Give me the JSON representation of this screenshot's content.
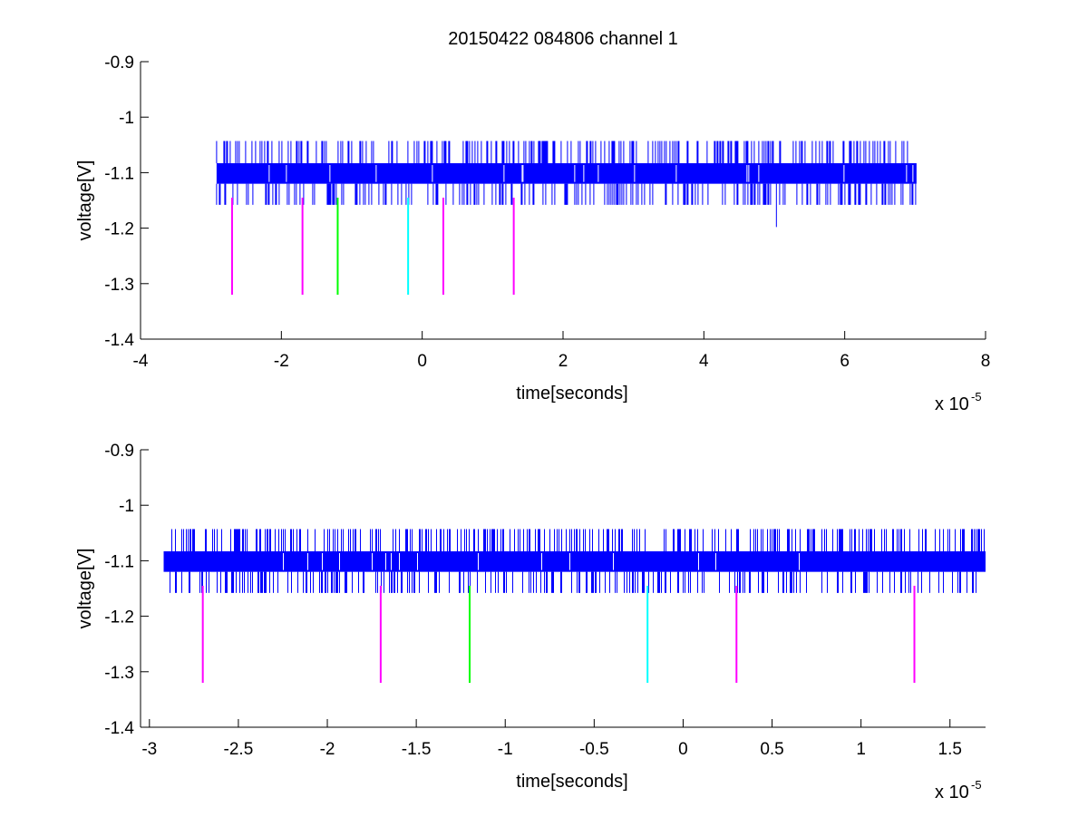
{
  "figure": {
    "title": "20150422 084806 channel 1"
  },
  "colors": {
    "trace": "#0000ff",
    "axis": "#000000",
    "marker_magenta": "#ff00ff",
    "marker_green": "#00ff00",
    "marker_cyan": "#00ffff"
  },
  "chart_data": [
    {
      "type": "line",
      "title": "20150422 084806 channel 1",
      "xlabel": "time[seconds]",
      "ylabel": "voltage[V]",
      "x_exponent_label": "x 10",
      "x_exponent": "-5",
      "xlim": [
        -4,
        8
      ],
      "ylim": [
        -1.4,
        -0.9
      ],
      "xticks": [
        -4,
        -2,
        0,
        2,
        4,
        6,
        8
      ],
      "xtick_labels": [
        "-4",
        "-2",
        "0",
        "2",
        "4",
        "6",
        "8"
      ],
      "yticks": [
        -1.4,
        -1.3,
        -1.2,
        -1.1,
        -1,
        -0.9
      ],
      "ytick_labels": [
        "-1.4",
        "-1.3",
        "-1.2",
        "-1.1",
        "-1",
        "-0.9"
      ],
      "grid": false,
      "series": [
        {
          "kind": "noisy-trace",
          "color": "#0000ff",
          "x_range": [
            -2.92,
            7.02
          ],
          "band": [
            -1.12,
            -1.083
          ],
          "spike_high": -1.043,
          "spike_low": -1.158,
          "outliers": [
            {
              "x": 5.03,
              "y": -1.198
            }
          ]
        }
      ],
      "markers": [
        {
          "x": -2.7,
          "y_top": -1.145,
          "y_bottom": -1.32,
          "color": "#ff00ff"
        },
        {
          "x": -1.7,
          "y_top": -1.145,
          "y_bottom": -1.32,
          "color": "#ff00ff"
        },
        {
          "x": -1.2,
          "y_top": -1.145,
          "y_bottom": -1.32,
          "color": "#00ff00"
        },
        {
          "x": -0.2,
          "y_top": -1.145,
          "y_bottom": -1.32,
          "color": "#00ffff"
        },
        {
          "x": 0.3,
          "y_top": -1.145,
          "y_bottom": -1.32,
          "color": "#ff00ff"
        },
        {
          "x": 1.3,
          "y_top": -1.145,
          "y_bottom": -1.32,
          "color": "#ff00ff"
        }
      ]
    },
    {
      "type": "line",
      "title": "",
      "xlabel": "time[seconds]",
      "ylabel": "voltage[V]",
      "x_exponent_label": "x 10",
      "x_exponent": "-5",
      "xlim": [
        -3.05,
        1.7
      ],
      "ylim": [
        -1.4,
        -0.9
      ],
      "xticks": [
        -3,
        -2.5,
        -2,
        -1.5,
        -1,
        -0.5,
        0,
        0.5,
        1,
        1.5
      ],
      "xtick_labels": [
        "-3",
        "-2.5",
        "-2",
        "-1.5",
        "-1",
        "-0.5",
        "0",
        "0.5",
        "1",
        "1.5"
      ],
      "yticks": [
        -1.4,
        -1.3,
        -1.2,
        -1.1,
        -1,
        -0.9
      ],
      "ytick_labels": [
        "-1.4",
        "-1.3",
        "-1.2",
        "-1.1",
        "-1",
        "-0.9"
      ],
      "grid": false,
      "series": [
        {
          "kind": "noisy-trace",
          "color": "#0000ff",
          "x_range": [
            -2.92,
            1.7
          ],
          "band": [
            -1.12,
            -1.083
          ],
          "spike_high": -1.043,
          "spike_low": -1.158,
          "outliers": []
        }
      ],
      "markers": [
        {
          "x": -2.7,
          "y_top": -1.145,
          "y_bottom": -1.32,
          "color": "#ff00ff"
        },
        {
          "x": -1.7,
          "y_top": -1.145,
          "y_bottom": -1.32,
          "color": "#ff00ff"
        },
        {
          "x": -1.2,
          "y_top": -1.145,
          "y_bottom": -1.32,
          "color": "#00ff00"
        },
        {
          "x": -0.2,
          "y_top": -1.145,
          "y_bottom": -1.32,
          "color": "#00ffff"
        },
        {
          "x": 0.3,
          "y_top": -1.145,
          "y_bottom": -1.32,
          "color": "#ff00ff"
        },
        {
          "x": 1.3,
          "y_top": -1.145,
          "y_bottom": -1.32,
          "color": "#ff00ff"
        }
      ]
    }
  ]
}
